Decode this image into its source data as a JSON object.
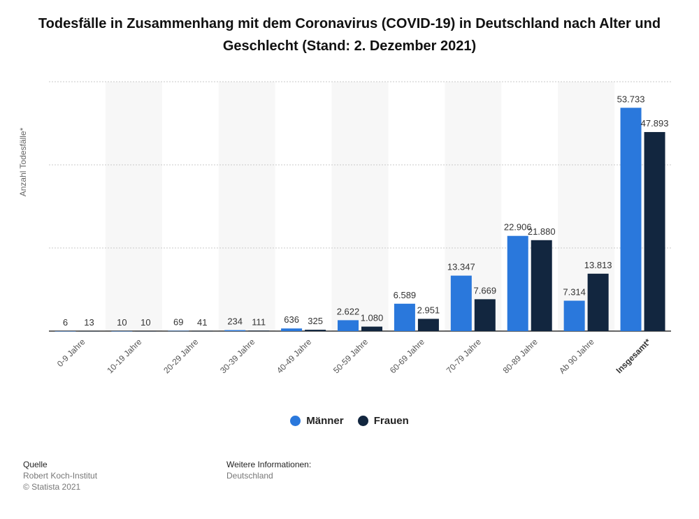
{
  "title": "Todesfälle in Zusammenhang mit dem Coronavirus (COVID-19) in Deutschland nach Alter und Geschlecht (Stand: 2. Dezember 2021)",
  "colors": {
    "maenner": "#2a78dc",
    "frauen": "#12263f",
    "grid": "#c8c8c8",
    "band": "#f7f7f7"
  },
  "chart_data": {
    "type": "bar",
    "title": "Todesfälle in Zusammenhang mit dem Coronavirus (COVID-19) in Deutschland nach Alter und Geschlecht (Stand: 2. Dezember 2021)",
    "xlabel": "",
    "ylabel": "Anzahl Todesfälle*",
    "categories": [
      "0-9 Jahre",
      "10-19 Jahre",
      "20-29 Jahre",
      "30-39 Jahre",
      "40-49 Jahre",
      "50-59 Jahre",
      "60-69 Jahre",
      "70-79 Jahre",
      "80-89 Jahre",
      "Ab 90 Jahre",
      "Insgesamt*"
    ],
    "series": [
      {
        "name": "Männer",
        "values": [
          6,
          10,
          69,
          234,
          636,
          2622,
          6589,
          13347,
          22906,
          7314,
          53733
        ],
        "labels": [
          "6",
          "10",
          "69",
          "234",
          "636",
          "2.622",
          "6.589",
          "13.347",
          "22.906",
          "7.314",
          "53.733"
        ]
      },
      {
        "name": "Frauen",
        "values": [
          13,
          10,
          41,
          111,
          325,
          1080,
          2951,
          7669,
          21880,
          13813,
          47893
        ],
        "labels": [
          "13",
          "10",
          "41",
          "111",
          "325",
          "1.080",
          "2.951",
          "7.669",
          "21.880",
          "13.813",
          "47.893"
        ]
      }
    ],
    "ylim": [
      0,
      60000
    ],
    "grid": true,
    "legend": "bottom"
  },
  "legend": {
    "maenner": "Männer",
    "frauen": "Frauen"
  },
  "footer": {
    "source_heading": "Quelle",
    "source_name": "Robert Koch-Institut",
    "copyright": "© Statista 2021",
    "info_heading": "Weitere Informationen:",
    "info_text": "Deutschland"
  }
}
